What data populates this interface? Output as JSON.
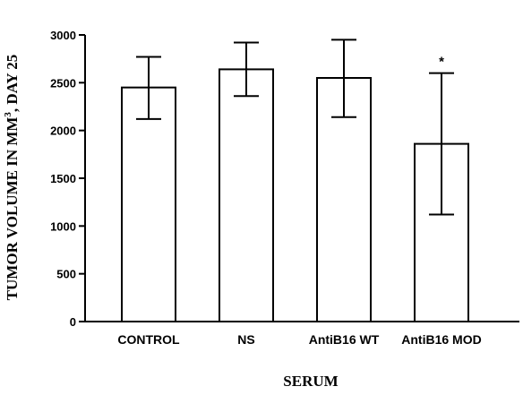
{
  "chart_data": {
    "type": "bar",
    "title": "",
    "xlabel": "SERUM",
    "ylabel_parts": [
      "TUMOR VOLUME IN MM",
      "3",
      ", DAY 25"
    ],
    "categories": [
      "CONTROL",
      "NS",
      "AntiB16 WT",
      "AntiB16 MOD"
    ],
    "values": [
      2450,
      2640,
      2550,
      1860
    ],
    "error_upper": [
      2770,
      2920,
      2950,
      2600
    ],
    "error_lower": [
      2120,
      2360,
      2140,
      1120
    ],
    "annotations": [
      "",
      "",
      "",
      "*"
    ],
    "ylim": [
      0,
      3000
    ],
    "yticks": [
      0,
      500,
      1000,
      1500,
      2000,
      2500,
      3000
    ],
    "ytick_labels": [
      "0",
      "500",
      "1000",
      "1500",
      "2000",
      "2500",
      "3000"
    ],
    "grid": false,
    "legend": "none",
    "bar_fill": "#ffffff",
    "bar_stroke": "#000000"
  }
}
